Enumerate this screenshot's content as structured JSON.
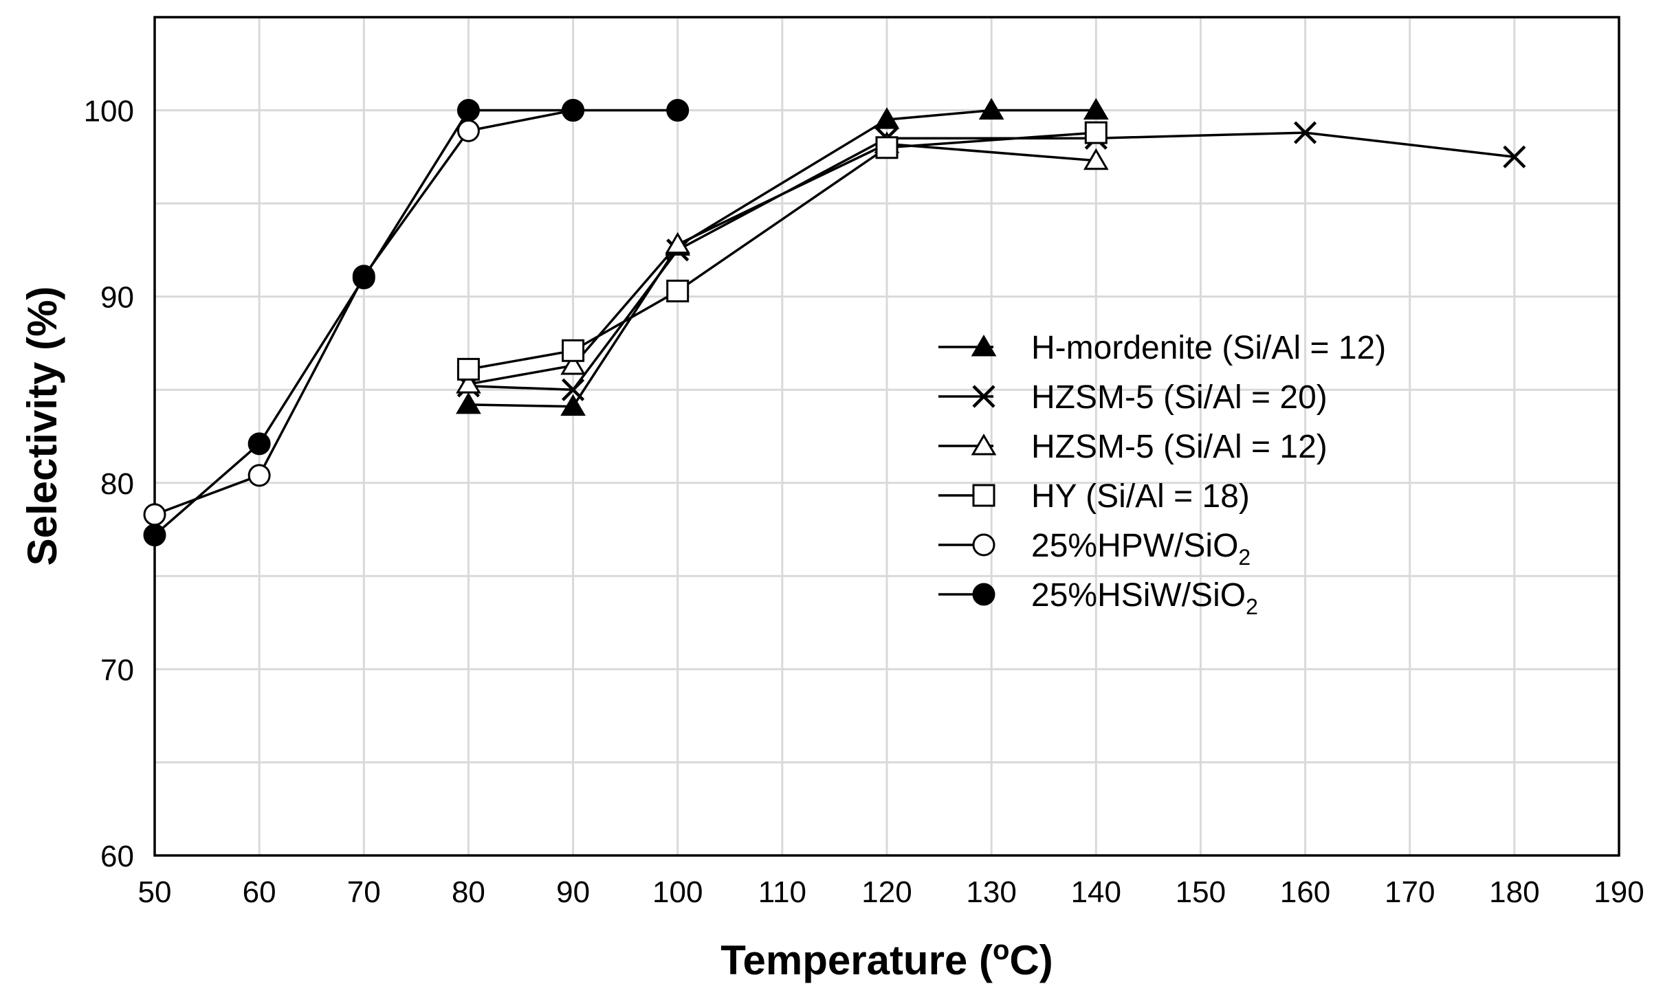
{
  "chart_data": {
    "type": "line",
    "title": "",
    "xlabel": "Temperature (",
    "xlabel_sup": "o",
    "xlabel_suffix": "C)",
    "ylabel": "Selectivity (%)",
    "xlim": [
      50,
      190
    ],
    "ylim": [
      60,
      105
    ],
    "x_ticks": [
      50,
      60,
      70,
      80,
      90,
      100,
      110,
      120,
      130,
      140,
      150,
      160,
      170,
      180,
      190
    ],
    "y_ticks": [
      60,
      70,
      80,
      90,
      100
    ],
    "grid": true,
    "legend_position": "center-right",
    "colors": {
      "line": "#000000",
      "grid": "#d9d9d9",
      "background": "#ffffff"
    },
    "series": [
      {
        "name": "H-mordenite (Si/Al = 12)",
        "name_main": "H-mordenite (Si/Al = 12)",
        "name_sub": "",
        "marker": "filled-triangle",
        "x": [
          80,
          90,
          100,
          120,
          130,
          140
        ],
        "y": [
          84.2,
          84.1,
          92.7,
          99.5,
          100,
          100
        ]
      },
      {
        "name": "HZSM-5 (Si/Al = 20)",
        "name_main": "HZSM-5 (Si/Al = 20)",
        "name_sub": "",
        "marker": "cross",
        "x": [
          80,
          90,
          100,
          120,
          140,
          160,
          180
        ],
        "y": [
          85.2,
          85.0,
          92.5,
          98.5,
          98.5,
          98.8,
          97.5
        ]
      },
      {
        "name": "HZSM-5 (Si/Al = 12)",
        "name_main": "HZSM-5 (Si/Al = 12)",
        "name_sub": "",
        "marker": "open-triangle",
        "x": [
          80,
          90,
          100,
          120,
          140
        ],
        "y": [
          85.3,
          86.3,
          92.8,
          98.2,
          97.3
        ]
      },
      {
        "name": "HY (Si/Al = 18)",
        "name_main": "HY (Si/Al = 18)",
        "name_sub": "",
        "marker": "open-square",
        "x": [
          80,
          90,
          100,
          120,
          140
        ],
        "y": [
          86.1,
          87.1,
          90.3,
          98.0,
          98.8
        ]
      },
      {
        "name": "25%HPW/SiO2",
        "name_main": "25%HPW/SiO",
        "name_sub": "2",
        "marker": "open-circle",
        "x": [
          50,
          60,
          70,
          80,
          90
        ],
        "y": [
          78.3,
          80.4,
          91.1,
          98.9,
          100
        ]
      },
      {
        "name": "25%HSiW/SiO2",
        "name_main": "25%HSiW/SiO",
        "name_sub": "2",
        "marker": "filled-circle",
        "x": [
          50,
          60,
          70,
          80,
          90,
          100
        ],
        "y": [
          77.2,
          82.1,
          91.0,
          100,
          100,
          100
        ]
      }
    ]
  }
}
